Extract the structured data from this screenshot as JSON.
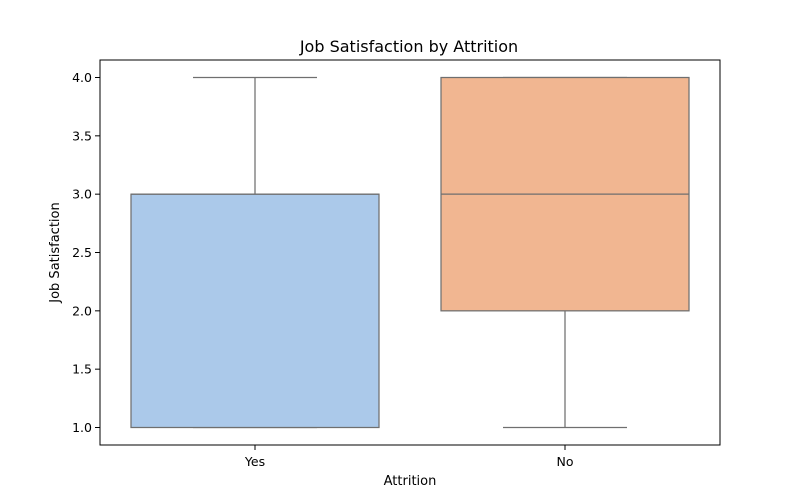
{
  "chart_data": {
    "type": "box",
    "title": "Job Satisfaction by Attrition",
    "xlabel": "Attrition",
    "ylabel": "Job Satisfaction",
    "ylim": [
      0.85,
      4.15
    ],
    "yticks": [
      1.0,
      1.5,
      2.0,
      2.5,
      3.0,
      3.5,
      4.0
    ],
    "ytick_labels": [
      "1.0",
      "1.5",
      "2.0",
      "2.5",
      "3.0",
      "3.5",
      "4.0"
    ],
    "grid": false,
    "categories": [
      "Yes",
      "No"
    ],
    "boxes": [
      {
        "category": "Yes",
        "min": 1.0,
        "q1": 1.0,
        "median": 3.0,
        "q3": 3.0,
        "max": 4.0,
        "color": "#abc9ea"
      },
      {
        "category": "No",
        "min": 1.0,
        "q1": 2.0,
        "median": 3.0,
        "q3": 4.0,
        "max": 4.0,
        "color": "#f1b691"
      }
    ],
    "line_color": "#6f6f6f"
  }
}
